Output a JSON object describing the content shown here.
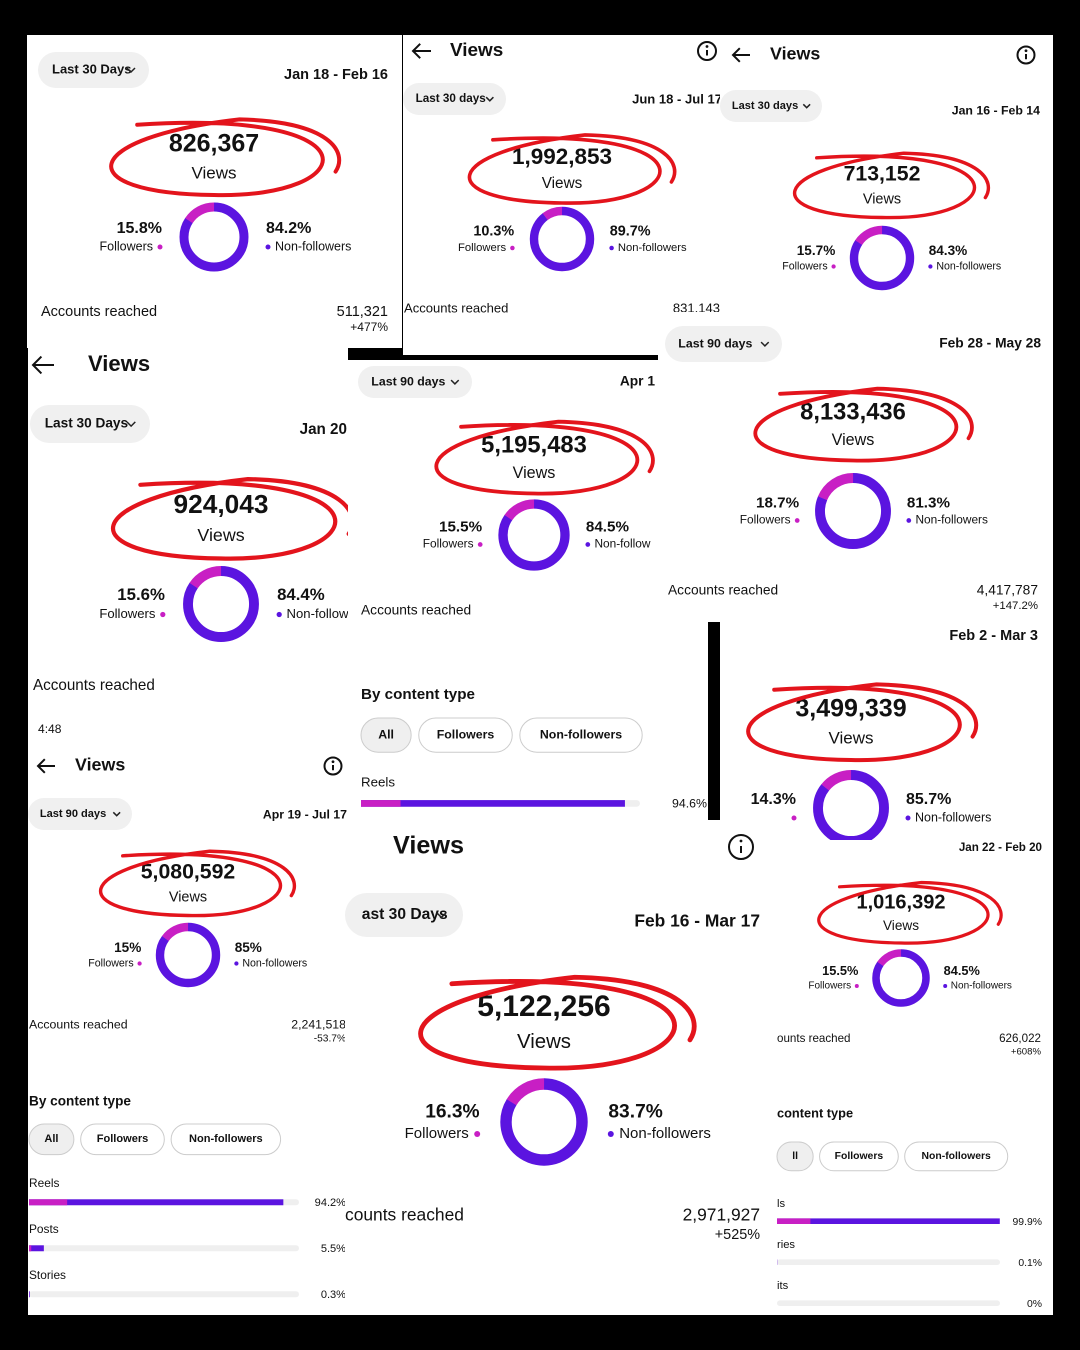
{
  "panels": [
    {
      "period": "Last 30 Days",
      "dates": "Jan 18 - Feb 16",
      "views": "826,367",
      "views_label": "Views",
      "followers": {
        "value": 15.8,
        "label": "15.8%"
      },
      "followers_label": "Followers",
      "non_followers": {
        "value": 84.2,
        "label": "84.2%"
      },
      "non_followers_label": "Non-followers",
      "accounts_label": "Accounts reached",
      "accounts": "511,321",
      "change": "+477%"
    },
    {
      "title": "Views",
      "period": "Last 30 days",
      "dates": "Jun 18 - Jul 17",
      "views": "1,992,853",
      "views_label": "Views",
      "followers": {
        "value": 10.3,
        "label": "10.3%"
      },
      "followers_label": "Followers",
      "non_followers": {
        "value": 89.7,
        "label": "89.7%"
      },
      "non_followers_label": "Non-followers",
      "accounts_label": "Accounts reached",
      "accounts": "831,143"
    },
    {
      "title": "Views",
      "period": "Last 30 days",
      "dates": "Jan 16 - Feb 14",
      "views": "713,152",
      "views_label": "Views",
      "followers": {
        "value": 15.7,
        "label": "15.7%"
      },
      "followers_label": "Followers",
      "non_followers": {
        "value": 84.3,
        "label": "84.3%"
      },
      "non_followers_label": "Non-followers"
    },
    {
      "title": "Views",
      "period": "Last 30 Days",
      "dates": "Jan 20",
      "views": "924,043",
      "views_label": "Views",
      "followers": {
        "value": 15.6,
        "label": "15.6%"
      },
      "followers_label": "Followers",
      "non_followers": {
        "value": 84.4,
        "label": "84.4%"
      },
      "non_followers_label": "Non-follow",
      "accounts_label": "Accounts reached"
    },
    {
      "period": "Last 90 days",
      "dates": "Apr 1",
      "views": "5,195,483",
      "views_label": "Views",
      "followers": {
        "value": 15.5,
        "label": "15.5%"
      },
      "followers_label": "Followers",
      "non_followers": {
        "value": 84.5,
        "label": "84.5%"
      },
      "non_followers_label": "Non-follow",
      "accounts_label": "Accounts reached",
      "content": {
        "title": "By content type",
        "filters": [
          "All",
          "Followers",
          "Non-followers"
        ],
        "rows": [
          {
            "name": "Reels",
            "share": {
              "value": 94.6,
              "label": "94.6%"
            }
          }
        ]
      }
    },
    {
      "period": "Last 90 days",
      "dates": "Feb 28 - May 28",
      "views": "8,133,436",
      "views_label": "Views",
      "followers": {
        "value": 18.7,
        "label": "18.7%"
      },
      "followers_label": "Followers",
      "non_followers": {
        "value": 81.3,
        "label": "81.3%"
      },
      "non_followers_label": "Non-followers",
      "accounts_label": "Accounts reached",
      "accounts": "4,417,787",
      "change": "+147.2%"
    },
    {
      "dates": "Feb 2 - Mar 3",
      "views": "3,499,339",
      "views_label": "Views",
      "followers": {
        "value": 14.3,
        "label": "14.3%"
      },
      "non_followers": {
        "value": 85.7,
        "label": "85.7%"
      },
      "non_followers_label": "Non-followers"
    },
    {
      "status_time": "4:48",
      "title": "Views",
      "period": "Last 90 days",
      "dates": "Apr 19 - Jul 17",
      "views": "5,080,592",
      "views_label": "Views",
      "followers": {
        "value": 15,
        "label": "15%"
      },
      "followers_label": "Followers",
      "non_followers": {
        "value": 85,
        "label": "85%"
      },
      "non_followers_label": "Non-followers",
      "accounts_label": "Accounts reached",
      "accounts": "2,241,518",
      "change": "-53.7%",
      "content": {
        "title": "By content type",
        "filters": [
          "All",
          "Followers",
          "Non-followers"
        ],
        "rows": [
          {
            "name": "Reels",
            "share": {
              "value": 94.2,
              "label": "94.2%"
            }
          },
          {
            "name": "Posts",
            "share": {
              "value": 5.5,
              "label": "5.5%"
            }
          },
          {
            "name": "Stories",
            "share": {
              "value": 0.3,
              "label": "0.3%"
            }
          }
        ]
      }
    },
    {
      "title": "Views",
      "period": "ast 30 Days",
      "dates": "Feb 16 - Mar 17",
      "views": "5,122,256",
      "views_label": "Views",
      "followers": {
        "value": 16.3,
        "label": "16.3%"
      },
      "followers_label": "Followers",
      "non_followers": {
        "value": 83.7,
        "label": "83.7%"
      },
      "non_followers_label": "Non-followers",
      "accounts_label": "counts reached",
      "accounts": "2,971,927",
      "change": "+525%"
    },
    {
      "dates": "Jan 22 - Feb 20",
      "views": "1,016,392",
      "views_label": "Views",
      "followers": {
        "value": 15.5,
        "label": "15.5%"
      },
      "followers_label": "Followers",
      "non_followers": {
        "value": 84.5,
        "label": "84.5%"
      },
      "non_followers_label": "Non-followers",
      "accounts_label": "ounts reached",
      "accounts": "626,022",
      "change": "+608%",
      "content": {
        "title": "content type",
        "filters": [
          "ll",
          "Followers",
          "Non-followers"
        ],
        "rows": [
          {
            "name": "ls",
            "share": {
              "value": 99.9,
              "label": "99.9%"
            }
          },
          {
            "name": "ries",
            "share": {
              "value": 0.1,
              "label": "0.1%"
            }
          },
          {
            "name": "its",
            "share": {
              "value": 0,
              "label": "0%"
            }
          }
        ]
      }
    }
  ]
}
